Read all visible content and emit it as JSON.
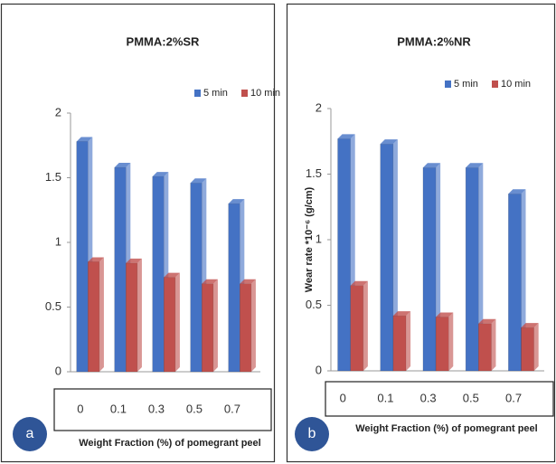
{
  "chart_data": [
    {
      "type": "bar",
      "title": "PMMA:2%SR",
      "panel_label": "a",
      "xlabel": "Weight Fraction (%) of  pomegrant peel",
      "categories": [
        "0",
        "0.1",
        "0.3",
        "0.5",
        "0.7"
      ],
      "series": [
        {
          "name": "5 min",
          "color": "#4472c4",
          "values": [
            1.78,
            1.58,
            1.51,
            1.46,
            1.3
          ]
        },
        {
          "name": "10 min",
          "color": "#c0504d",
          "values": [
            0.85,
            0.84,
            0.73,
            0.68,
            0.68
          ]
        }
      ],
      "ylim": [
        0,
        2
      ],
      "yticks": [
        0,
        0.5,
        1,
        1.5,
        2
      ]
    },
    {
      "type": "bar",
      "title": "PMMA:2%NR",
      "panel_label": "b",
      "ylabel": "Wear rate *10⁻⁶ (g/cm)",
      "xlabel": "Weight Fraction (%) of  pomegrant peel",
      "categories": [
        "0",
        "0.1",
        "0.3",
        "0.5",
        "0.7"
      ],
      "series": [
        {
          "name": "5 min",
          "color": "#4472c4",
          "values": [
            1.77,
            1.73,
            1.55,
            1.55,
            1.35
          ]
        },
        {
          "name": "10 min",
          "color": "#c0504d",
          "values": [
            0.65,
            0.42,
            0.41,
            0.36,
            0.33
          ]
        }
      ],
      "ylim": [
        0,
        2
      ],
      "yticks": [
        0,
        0.5,
        1,
        1.5,
        2
      ]
    }
  ]
}
